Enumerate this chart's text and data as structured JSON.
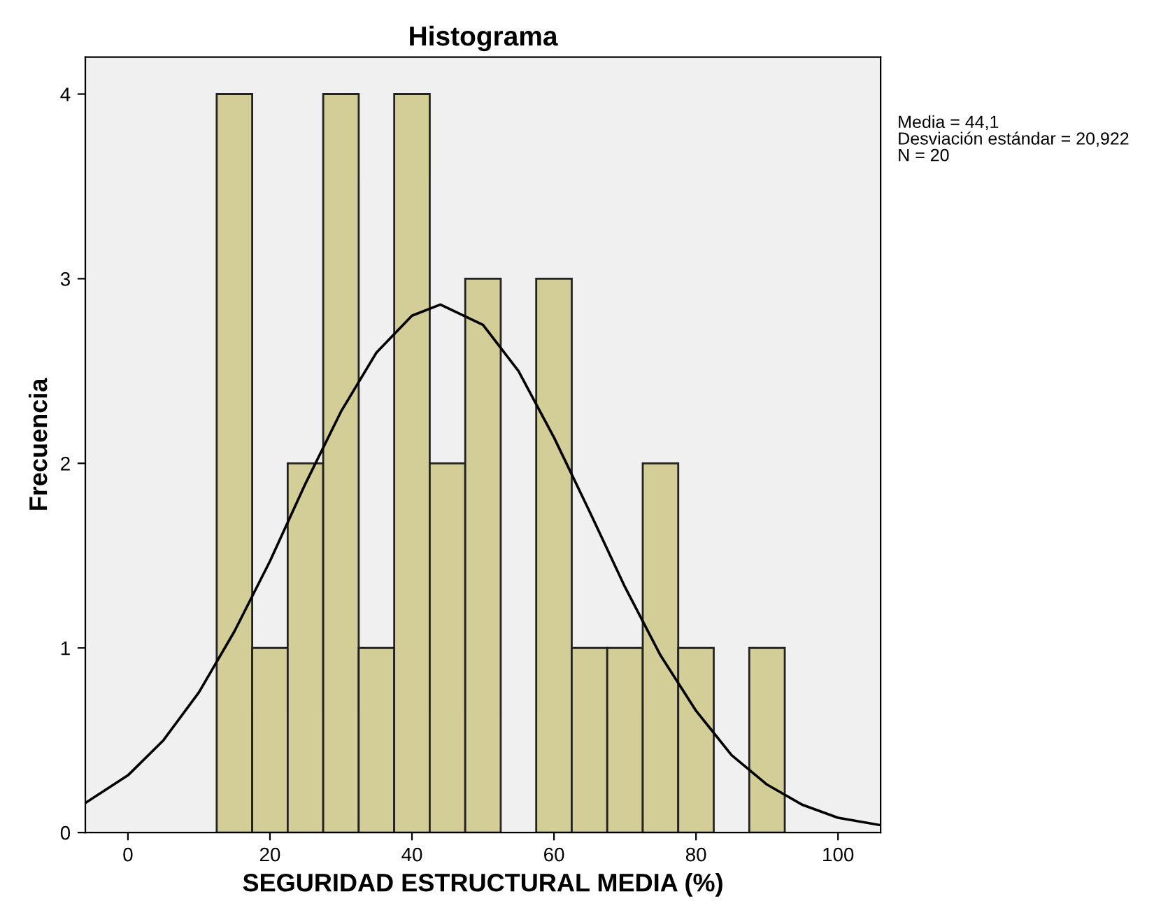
{
  "chart_data": {
    "type": "histogram",
    "title": "Histograma",
    "xlabel": "SEGURIDAD ESTRUCTURAL MEDIA (%)",
    "ylabel": "Frecuencia",
    "xlim": [
      -6,
      106
    ],
    "ylim": [
      0,
      4.2
    ],
    "xticks": [
      0,
      20,
      40,
      60,
      80,
      100
    ],
    "yticks": [
      0,
      1,
      2,
      3,
      4
    ],
    "series": [
      {
        "color": "#d3ce97",
        "bins": [
          12.5,
          17.5,
          22.5,
          27.5,
          32.5,
          37.5,
          42.5,
          47.5,
          52.5,
          57.5,
          62.5,
          67.5,
          72.5,
          77.5,
          82.5,
          87.5,
          92.5
        ],
        "values": [
          4,
          1,
          2,
          4,
          1,
          4,
          2,
          3,
          0,
          3,
          1,
          1,
          2,
          1,
          0,
          1
        ]
      },
      {
        "type": "line",
        "color": "#000000",
        "x": [
          -6,
          0,
          5,
          10,
          15,
          20,
          25,
          30,
          35,
          40,
          44,
          50,
          55,
          60,
          65,
          70,
          75,
          80,
          85,
          90,
          95,
          100,
          106
        ],
        "values": [
          0.16,
          0.31,
          0.5,
          0.76,
          1.09,
          1.47,
          1.89,
          2.28,
          2.6,
          2.8,
          2.86,
          2.75,
          2.5,
          2.14,
          1.74,
          1.33,
          0.96,
          0.66,
          0.42,
          0.26,
          0.15,
          0.08,
          0.04
        ]
      }
    ],
    "annotations": [
      "Media = 44,1",
      "Desviación estándar = 20,922",
      "N = 20"
    ]
  }
}
